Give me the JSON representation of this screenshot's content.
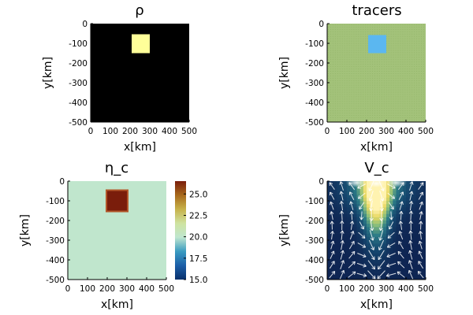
{
  "chart_data": [
    {
      "id": "rho",
      "type": "heatmap",
      "title": "ρ",
      "xlabel": "x[km]",
      "ylabel": "y[km]",
      "xlim": [
        0,
        500
      ],
      "ylim": [
        -500,
        0
      ],
      "xticks": [
        "0",
        "100",
        "200",
        "300",
        "400",
        "500"
      ],
      "yticks": [
        "0",
        "-100",
        "-200",
        "-300",
        "-400",
        "-500"
      ],
      "background_color": "#000000",
      "anomaly": {
        "x": [
          200,
          300
        ],
        "y": [
          -150,
          -50
        ],
        "color": "#ffff99"
      }
    },
    {
      "id": "tracers",
      "type": "scatter",
      "title": "tracers",
      "xlabel": "x[km]",
      "ylabel": "y[km]",
      "xlim": [
        0,
        500
      ],
      "ylim": [
        -500,
        0
      ],
      "xticks": [
        "0",
        "100",
        "200",
        "300",
        "400",
        "500"
      ],
      "yticks": [
        "0",
        "-100",
        "-200",
        "-300",
        "-400",
        "-500"
      ],
      "background_color": "#a3c27a",
      "anomaly": {
        "x": [
          200,
          300
        ],
        "y": [
          -150,
          -50
        ],
        "color": "#5bb7f0"
      }
    },
    {
      "id": "eta_c",
      "type": "heatmap",
      "title": "η_c",
      "xlabel": "x[km]",
      "ylabel": "y[km]",
      "xlim": [
        0,
        500
      ],
      "ylim": [
        -500,
        0
      ],
      "xticks": [
        "0",
        "100",
        "200",
        "300",
        "400",
        "500"
      ],
      "yticks": [
        "0",
        "-100",
        "-200",
        "-300",
        "-400",
        "-500"
      ],
      "background_value": 20.0,
      "anomaly": {
        "x": [
          200,
          300
        ],
        "y": [
          -150,
          -50
        ],
        "value": 26.5
      },
      "colorbar": {
        "range": [
          15,
          26.5
        ],
        "ticks": [
          "15.0",
          "17.5",
          "20.0",
          "22.5",
          "25.0"
        ],
        "tick_values": [
          15.0,
          17.5,
          20.0,
          22.5,
          25.0
        ],
        "colors": [
          "#08306b",
          "#1c5fa8",
          "#3a9bc1",
          "#bfe6cf",
          "#cfe3a0",
          "#c7b24a",
          "#a86a1c",
          "#7a1d0b"
        ]
      }
    },
    {
      "id": "V_c",
      "type": "heatmap",
      "title": "V_c",
      "xlabel": "x[km]",
      "ylabel": "y[km]",
      "xlim": [
        0,
        500
      ],
      "ylim": [
        -500,
        0
      ],
      "xticks": [
        "0",
        "100",
        "200",
        "300",
        "400",
        "500"
      ],
      "yticks": [
        "0",
        "-100",
        "-200",
        "-300",
        "-400",
        "-500"
      ],
      "colors": [
        "#0c1a4a",
        "#15476e",
        "#2c7c87",
        "#8cc07b",
        "#e8d760",
        "#fff3b0"
      ],
      "quiver": true
    }
  ]
}
